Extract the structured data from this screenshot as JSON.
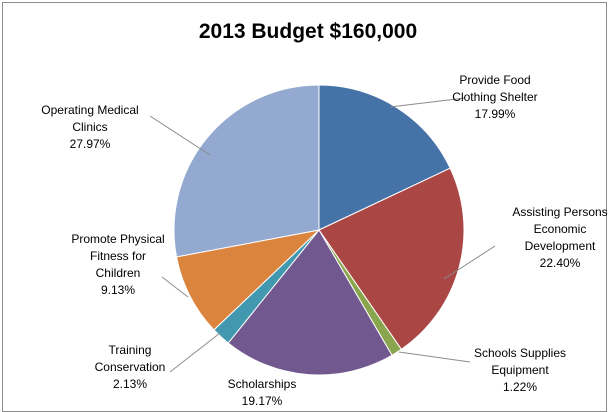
{
  "chart_data": {
    "type": "pie",
    "title": "2013 Budget $160,000",
    "slices": [
      {
        "label": [
          "Provide Food",
          "Clothing Shelter"
        ],
        "pct_label": "17.99%",
        "value": 17.99,
        "color": "#4572a7"
      },
      {
        "label": [
          "Assisting Persons",
          "Economic",
          "Development"
        ],
        "pct_label": "22.40%",
        "value": 22.4,
        "color": "#aa4643"
      },
      {
        "label": [
          "Schools Supplies",
          "Equipment"
        ],
        "pct_label": "1.22%",
        "value": 1.22,
        "color": "#89a54e"
      },
      {
        "label": [
          "Scholarships"
        ],
        "pct_label": "19.17%",
        "value": 19.17,
        "color": "#71588f"
      },
      {
        "label": [
          "Training",
          "Conservation"
        ],
        "pct_label": "2.13%",
        "value": 2.13,
        "color": "#4198af"
      },
      {
        "label": [
          "Promote Physical",
          "Fitness for",
          "Children"
        ],
        "pct_label": "9.13%",
        "value": 9.13,
        "color": "#db843d"
      },
      {
        "label": [
          "Operating Medical",
          "Clinics"
        ],
        "pct_label": "27.97%",
        "value": 27.97,
        "color": "#93a9cf"
      }
    ],
    "legend": "none"
  }
}
